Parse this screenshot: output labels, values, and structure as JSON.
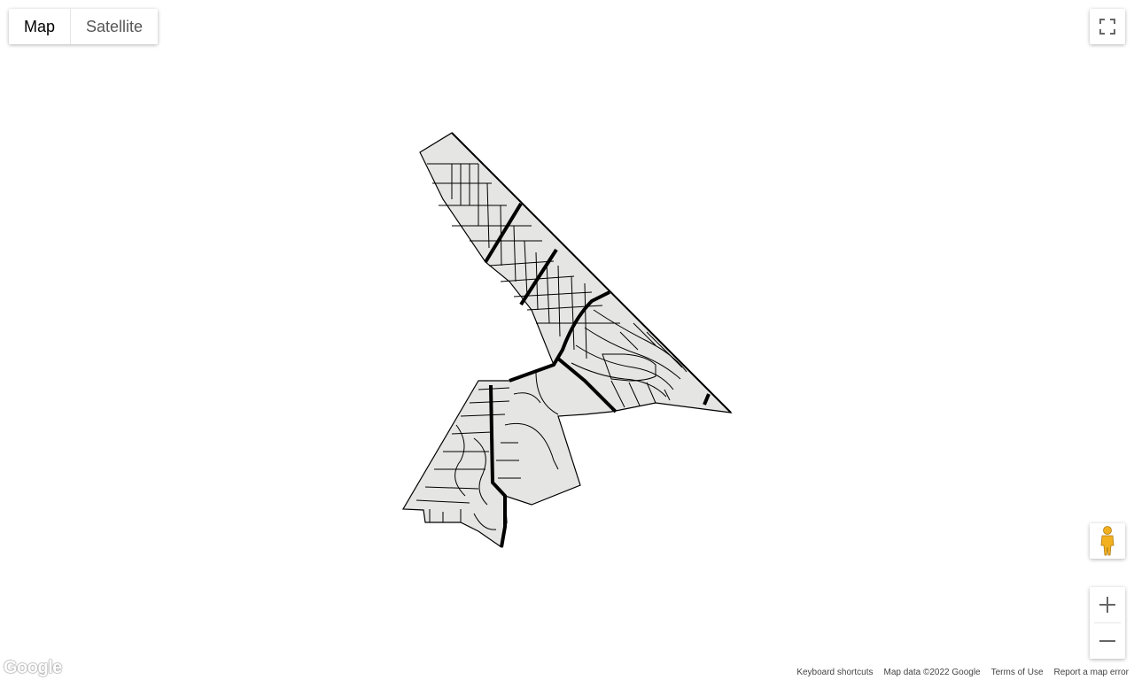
{
  "map_type_control": {
    "map_label": "Map",
    "satellite_label": "Satellite",
    "selected": "Map"
  },
  "controls": {
    "fullscreen_icon": "fullscreen-icon",
    "pegman_icon": "pegman-icon",
    "zoom_in_icon": "plus-icon",
    "zoom_out_icon": "minus-icon"
  },
  "logo": {
    "text": "Google"
  },
  "footer": {
    "shortcuts": "Keyboard shortcuts",
    "map_data": "Map data ©2022 Google",
    "terms": "Terms of Use",
    "report": "Report a map error"
  },
  "colors": {
    "region_fill": "#e5e5e3",
    "road": "#000000",
    "background": "#ffffff",
    "pegman": "#f2b01e"
  }
}
